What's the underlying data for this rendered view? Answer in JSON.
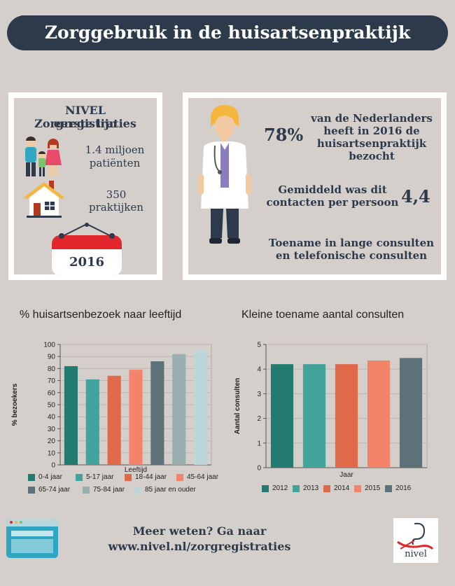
{
  "header": {
    "title": "Zorggebruik in de huisartsenpraktijk"
  },
  "registration": {
    "title_line1": "NIVEL Zorgregistraties",
    "title_line2": "eerste lijn",
    "patients_line1": "1.4 miljoen",
    "patients_line2": "patiënten",
    "practices_line1": "350",
    "practices_line2": "praktijken",
    "year": "2016"
  },
  "facts": {
    "percent": "78%",
    "percent_text_line1": "van de Nederlanders",
    "percent_text_line2": "heeft in 2016 de",
    "percent_text_line3": "huisartsenpraktijk",
    "percent_text_line4": "bezocht",
    "avg_text_line1": "Gemiddeld was dit",
    "avg_text_line2": "contacten per persoon",
    "avg_value": "4,4",
    "increase_line1": "Toename in lange consulten",
    "increase_line2": "en telefonische consulten"
  },
  "chart_data": [
    {
      "type": "bar",
      "title": "% huisartsenbezoek naar leeftijd",
      "xlabel": "Leeftijd",
      "ylabel": "% bezoekers",
      "ylim": [
        0,
        100
      ],
      "yticks": [
        "0",
        "10",
        "20",
        "30",
        "40",
        "50",
        "60",
        "70",
        "80",
        "90",
        "100"
      ],
      "categories": [
        "0-4 jaar",
        "5-17 jaar",
        "18-44 jaar",
        "45-64 jaar",
        "65-74 jaar",
        "75-84 jaar",
        "85 jaar en ouder"
      ],
      "values": [
        82,
        71,
        74,
        79,
        86,
        92,
        95
      ],
      "colors": [
        "#237a6e",
        "#42a39a",
        "#e0694a",
        "#f3846a",
        "#5c7278",
        "#9aaeb0",
        "#bdd6d9"
      ],
      "legend": "bottom"
    },
    {
      "type": "bar",
      "title": "Kleine toename aantal consulten",
      "xlabel": "Jaar",
      "ylabel": "Aantal consulten",
      "ylim": [
        0,
        5
      ],
      "yticks": [
        "0",
        "1",
        "2",
        "3",
        "4",
        "5"
      ],
      "categories": [
        "2012",
        "2013",
        "2014",
        "2015",
        "2016"
      ],
      "values": [
        4.2,
        4.2,
        4.2,
        4.35,
        4.45
      ],
      "colors": [
        "#237a6e",
        "#42a39a",
        "#e0694a",
        "#f3846a",
        "#5c7278"
      ],
      "legend": "bottom"
    }
  ],
  "footer": {
    "line1": "Meer weten? Ga naar",
    "line2": "www.nivel.nl/zorgregistraties",
    "logo_text": "nivel"
  },
  "colors": {
    "navy": "#2d3a4b",
    "background": "#d5cfcc",
    "red": "#e1262c"
  }
}
